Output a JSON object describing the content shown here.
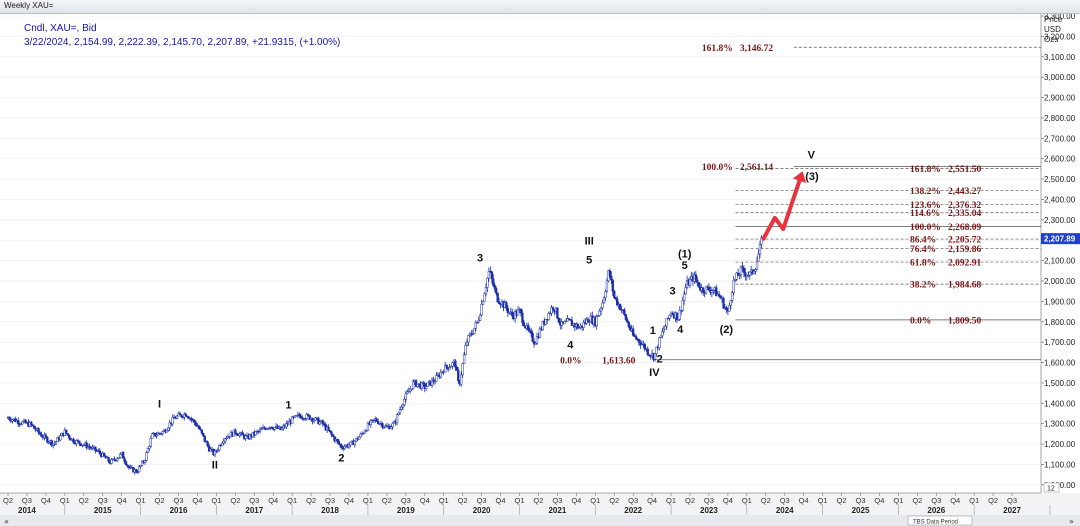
{
  "window": {
    "title": "Weekly XAU="
  },
  "header": {
    "line1": "Cndl, XAU=, Bid",
    "line2": "3/22/2024, 2,154.99, 2,222.39, 2,145.70, 2,207.89, +21.9315, (+1.00%)"
  },
  "yaxis": {
    "title_lines": [
      "Price",
      "USD",
      "Ozs"
    ],
    "current_price_label": "2,207.89",
    "extra_label": "12"
  },
  "xaxis": {
    "status_text": "TBS Data Period"
  },
  "colors": {
    "candles": "#1c2fa8",
    "fib_text": "#7a1515",
    "arrow": "#e8323c",
    "price_marker": "#1f3fd0"
  },
  "icons": {
    "left": "double-left-arrow-icon",
    "right": "double-right-arrow-icon"
  },
  "chart_data": {
    "type": "candlestick",
    "title": "Weekly XAU=",
    "ylabel": "Price USD Ozs",
    "ylim": [
      960,
      3310
    ],
    "yticks": [
      1000,
      1100,
      1200,
      1300,
      1400,
      1500,
      1600,
      1700,
      1800,
      1900,
      2000,
      2100,
      2200,
      2300,
      2400,
      2500,
      2600,
      2700,
      2800,
      2900,
      3000,
      3100,
      3200,
      3300
    ],
    "ytick_labels": [
      "1,000.00",
      "1,100.00",
      "1,200.00",
      "1,300.00",
      "1,400.00",
      "1,500.00",
      "1,600.00",
      "1,700.00",
      "1,800.00",
      "1,900.00",
      "2,000.00",
      "2,100.00",
      "2,200.00",
      "2,300.00",
      "2,400.00",
      "2,500.00",
      "2,600.00",
      "2,700.00",
      "2,800.00",
      "2,900.00",
      "3,000.00",
      "3,100.00",
      "3,200.00",
      "3,300.00"
    ],
    "xlim": [
      2014.25,
      2027.75
    ],
    "quarters": [
      {
        "t": 2014.25,
        "label": "Q2"
      },
      {
        "t": 2014.5,
        "label": "Q3"
      },
      {
        "t": 2014.75,
        "label": "Q4"
      },
      {
        "t": 2015.0,
        "label": "Q1"
      },
      {
        "t": 2015.25,
        "label": "Q2"
      },
      {
        "t": 2015.5,
        "label": "Q3"
      },
      {
        "t": 2015.75,
        "label": "Q4"
      },
      {
        "t": 2016.0,
        "label": "Q1"
      },
      {
        "t": 2016.25,
        "label": "Q2"
      },
      {
        "t": 2016.5,
        "label": "Q3"
      },
      {
        "t": 2016.75,
        "label": "Q4"
      },
      {
        "t": 2017.0,
        "label": "Q1"
      },
      {
        "t": 2017.25,
        "label": "Q2"
      },
      {
        "t": 2017.5,
        "label": "Q3"
      },
      {
        "t": 2017.75,
        "label": "Q4"
      },
      {
        "t": 2018.0,
        "label": "Q1"
      },
      {
        "t": 2018.25,
        "label": "Q2"
      },
      {
        "t": 2018.5,
        "label": "Q3"
      },
      {
        "t": 2018.75,
        "label": "Q4"
      },
      {
        "t": 2019.0,
        "label": "Q1"
      },
      {
        "t": 2019.25,
        "label": "Q2"
      },
      {
        "t": 2019.5,
        "label": "Q3"
      },
      {
        "t": 2019.75,
        "label": "Q4"
      },
      {
        "t": 2020.0,
        "label": "Q1"
      },
      {
        "t": 2020.25,
        "label": "Q2"
      },
      {
        "t": 2020.5,
        "label": "Q3"
      },
      {
        "t": 2020.75,
        "label": "Q4"
      },
      {
        "t": 2021.0,
        "label": "Q1"
      },
      {
        "t": 2021.25,
        "label": "Q2"
      },
      {
        "t": 2021.5,
        "label": "Q3"
      },
      {
        "t": 2021.75,
        "label": "Q4"
      },
      {
        "t": 2022.0,
        "label": "Q1"
      },
      {
        "t": 2022.25,
        "label": "Q2"
      },
      {
        "t": 2022.5,
        "label": "Q3"
      },
      {
        "t": 2022.75,
        "label": "Q4"
      },
      {
        "t": 2023.0,
        "label": "Q1"
      },
      {
        "t": 2023.25,
        "label": "Q2"
      },
      {
        "t": 2023.5,
        "label": "Q3"
      },
      {
        "t": 2023.75,
        "label": "Q4"
      },
      {
        "t": 2024.0,
        "label": "Q1"
      },
      {
        "t": 2024.25,
        "label": "Q2"
      },
      {
        "t": 2024.5,
        "label": "Q3"
      },
      {
        "t": 2024.75,
        "label": "Q4"
      },
      {
        "t": 2025.0,
        "label": "Q1"
      },
      {
        "t": 2025.25,
        "label": "Q2"
      },
      {
        "t": 2025.5,
        "label": "Q3"
      },
      {
        "t": 2025.75,
        "label": "Q4"
      },
      {
        "t": 2026.0,
        "label": "Q1"
      },
      {
        "t": 2026.25,
        "label": "Q2"
      },
      {
        "t": 2026.5,
        "label": "Q3"
      },
      {
        "t": 2026.75,
        "label": "Q4"
      },
      {
        "t": 2027.0,
        "label": "Q1"
      },
      {
        "t": 2027.25,
        "label": "Q2"
      },
      {
        "t": 2027.5,
        "label": "Q3"
      }
    ],
    "years": [
      {
        "t": 2014.5,
        "label": "2014"
      },
      {
        "t": 2015.5,
        "label": "2015"
      },
      {
        "t": 2016.5,
        "label": "2016"
      },
      {
        "t": 2017.5,
        "label": "2017"
      },
      {
        "t": 2018.5,
        "label": "2018"
      },
      {
        "t": 2019.5,
        "label": "2019"
      },
      {
        "t": 2020.5,
        "label": "2020"
      },
      {
        "t": 2021.5,
        "label": "2021"
      },
      {
        "t": 2022.5,
        "label": "2022"
      },
      {
        "t": 2023.5,
        "label": "2023"
      },
      {
        "t": 2024.5,
        "label": "2024"
      },
      {
        "t": 2025.5,
        "label": "2025"
      },
      {
        "t": 2026.5,
        "label": "2026"
      },
      {
        "t": 2027.5,
        "label": "2027"
      }
    ],
    "price_path": [
      [
        2014.25,
        1330
      ],
      [
        2014.4,
        1310
      ],
      [
        2014.55,
        1295
      ],
      [
        2014.7,
        1240
      ],
      [
        2014.85,
        1200
      ],
      [
        2015.0,
        1260
      ],
      [
        2015.1,
        1220
      ],
      [
        2015.3,
        1190
      ],
      [
        2015.45,
        1160
      ],
      [
        2015.6,
        1110
      ],
      [
        2015.75,
        1150
      ],
      [
        2015.85,
        1080
      ],
      [
        2015.95,
        1065
      ],
      [
        2016.05,
        1120
      ],
      [
        2016.15,
        1240
      ],
      [
        2016.3,
        1260
      ],
      [
        2016.45,
        1330
      ],
      [
        2016.6,
        1350
      ],
      [
        2016.75,
        1290
      ],
      [
        2016.9,
        1180
      ],
      [
        2016.97,
        1150
      ],
      [
        2017.1,
        1230
      ],
      [
        2017.25,
        1260
      ],
      [
        2017.4,
        1230
      ],
      [
        2017.55,
        1260
      ],
      [
        2017.7,
        1290
      ],
      [
        2017.85,
        1270
      ],
      [
        2018.0,
        1320
      ],
      [
        2018.1,
        1340
      ],
      [
        2018.25,
        1330
      ],
      [
        2018.4,
        1300
      ],
      [
        2018.55,
        1230
      ],
      [
        2018.65,
        1185
      ],
      [
        2018.78,
        1200
      ],
      [
        2018.9,
        1240
      ],
      [
        2019.0,
        1290
      ],
      [
        2019.1,
        1320
      ],
      [
        2019.25,
        1280
      ],
      [
        2019.35,
        1300
      ],
      [
        2019.45,
        1400
      ],
      [
        2019.6,
        1500
      ],
      [
        2019.75,
        1480
      ],
      [
        2019.9,
        1520
      ],
      [
        2020.0,
        1570
      ],
      [
        2020.15,
        1600
      ],
      [
        2020.2,
        1480
      ],
      [
        2020.3,
        1700
      ],
      [
        2020.45,
        1800
      ],
      [
        2020.55,
        1970
      ],
      [
        2020.6,
        2050
      ],
      [
        2020.7,
        1920
      ],
      [
        2020.8,
        1880
      ],
      [
        2020.9,
        1830
      ],
      [
        2021.0,
        1850
      ],
      [
        2021.1,
        1760
      ],
      [
        2021.2,
        1700
      ],
      [
        2021.35,
        1820
      ],
      [
        2021.45,
        1880
      ],
      [
        2021.55,
        1780
      ],
      [
        2021.65,
        1800
      ],
      [
        2021.8,
        1770
      ],
      [
        2021.92,
        1820
      ],
      [
        2022.0,
        1800
      ],
      [
        2022.1,
        1900
      ],
      [
        2022.18,
        2050
      ],
      [
        2022.25,
        1920
      ],
      [
        2022.35,
        1860
      ],
      [
        2022.5,
        1730
      ],
      [
        2022.6,
        1700
      ],
      [
        2022.7,
        1650
      ],
      [
        2022.78,
        1630
      ],
      [
        2022.82,
        1680
      ],
      [
        2022.9,
        1760
      ],
      [
        2023.0,
        1850
      ],
      [
        2023.1,
        1820
      ],
      [
        2023.2,
        1980
      ],
      [
        2023.3,
        2020
      ],
      [
        2023.4,
        1960
      ],
      [
        2023.55,
        1960
      ],
      [
        2023.65,
        1920
      ],
      [
        2023.75,
        1840
      ],
      [
        2023.82,
        1990
      ],
      [
        2023.92,
        2050
      ],
      [
        2024.05,
        2030
      ],
      [
        2024.12,
        2080
      ],
      [
        2024.2,
        2200
      ]
    ],
    "projection_arrow": [
      [
        2024.22,
        2208
      ],
      [
        2024.37,
        2310
      ],
      [
        2024.48,
        2255
      ],
      [
        2024.72,
        2520
      ]
    ],
    "fib_left": [
      {
        "label": "161.8%",
        "value": 3146.72,
        "value_label": "3,146.72",
        "x_start": 2024.62
      },
      {
        "label": "100.0%",
        "value": 2561.14,
        "value_label": "2,561.14",
        "x_start": 2024.62
      },
      {
        "label": "0.0%",
        "value": 1613.6,
        "value_label": "1,613.60",
        "x_start": 2022.75
      }
    ],
    "fib_right": [
      {
        "label": "161.8%",
        "value": 2551.5,
        "value_label": "2,551.50",
        "dashed": true
      },
      {
        "label": "138.2%",
        "value": 2443.27,
        "value_label": "2,443.27",
        "dashed": true
      },
      {
        "label": "123.6%",
        "value": 2376.32,
        "value_label": "2,376.32",
        "dashed": true
      },
      {
        "label": "114.6%",
        "value": 2335.04,
        "value_label": "2,335.04",
        "dashed": true
      },
      {
        "label": "100.0%",
        "value": 2268.09,
        "value_label": "2,268.09",
        "dashed": false
      },
      {
        "label": "86.4%",
        "value": 2205.72,
        "value_label": "2,205.72",
        "dashed": true
      },
      {
        "label": "76.4%",
        "value": 2159.86,
        "value_label": "2,159.86",
        "dashed": true
      },
      {
        "label": "61.8%",
        "value": 2092.91,
        "value_label": "2,092.91",
        "dashed": true
      },
      {
        "label": "38.2%",
        "value": 1984.68,
        "value_label": "1,984.68",
        "dashed": true
      },
      {
        "label": "0.0%",
        "value": 1809.5,
        "value_label": "1,809.50",
        "dashed": false
      }
    ],
    "wave_labels": [
      {
        "text": "I",
        "t": 2016.25,
        "price": 1380
      },
      {
        "text": "II",
        "t": 2016.98,
        "price": 1080
      },
      {
        "text": "1",
        "t": 2017.95,
        "price": 1375
      },
      {
        "text": "2",
        "t": 2018.65,
        "price": 1115
      },
      {
        "text": "3",
        "t": 2020.48,
        "price": 2095
      },
      {
        "text": "III",
        "t": 2021.92,
        "price": 2180
      },
      {
        "text": "5",
        "t": 2021.92,
        "price": 2085
      },
      {
        "text": "4",
        "t": 2021.67,
        "price": 1670
      },
      {
        "text": "1",
        "t": 2022.76,
        "price": 1740
      },
      {
        "text": "2",
        "t": 2022.85,
        "price": 1600
      },
      {
        "text": "IV",
        "t": 2022.78,
        "price": 1535
      },
      {
        "text": "3",
        "t": 2023.02,
        "price": 1935
      },
      {
        "text": "4",
        "t": 2023.12,
        "price": 1745
      },
      {
        "text": "(1)",
        "t": 2023.18,
        "price": 2115
      },
      {
        "text": "5",
        "t": 2023.18,
        "price": 2060
      },
      {
        "text": "(2)",
        "t": 2023.73,
        "price": 1745
      },
      {
        "text": "V",
        "t": 2024.85,
        "price": 2600
      },
      {
        "text": "(3)",
        "t": 2024.86,
        "price": 2495
      }
    ]
  }
}
